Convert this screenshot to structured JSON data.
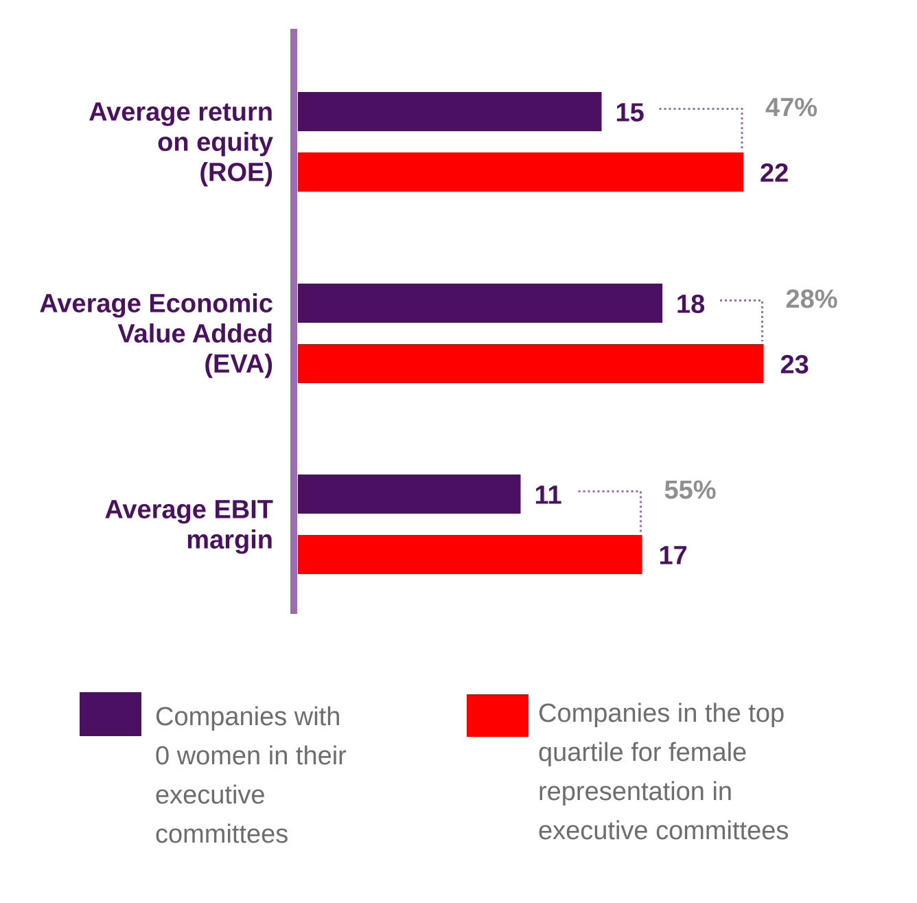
{
  "chart_data": {
    "type": "bar",
    "orientation": "horizontal",
    "categories": [
      [
        "Average return",
        "on equity",
        "(ROE)"
      ],
      [
        "Average Economic",
        "Value Added",
        "(EVA)"
      ],
      [
        "Average EBIT",
        "margin"
      ]
    ],
    "series": [
      {
        "name": "Companies with\n0 women in their\nexecutive\ncommittees",
        "color": "#4b1062",
        "values": [
          15,
          18,
          11
        ]
      },
      {
        "name": "Companies in the top\nquartile for female\nrepresentation in\nexecutive committees",
        "color": "#ff0000",
        "values": [
          22,
          23,
          17
        ]
      }
    ],
    "differences": [
      "47%",
      "28%",
      "55%"
    ],
    "colors": {
      "axis": "#9b6db0",
      "category_label": "#4b1062",
      "value_label": "#4b1062",
      "difference_label": "#8f8f8f",
      "connector": "#9b6db0",
      "legend_text": "#6d6d6d"
    },
    "grid": false,
    "legend_position": "bottom"
  }
}
